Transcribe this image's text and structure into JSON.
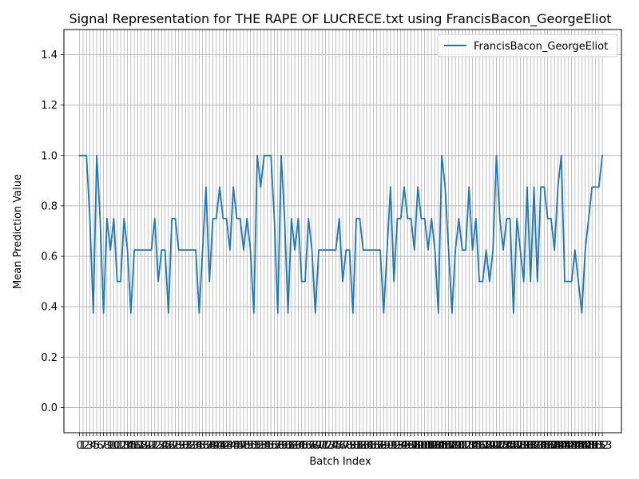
{
  "chart_data": {
    "type": "line",
    "title": "Signal Representation for THE RAPE OF LUCRECE.txt using FrancisBacon_GeorgeEliot",
    "xlabel": "Batch Index",
    "ylabel": "Mean Prediction Value",
    "xlim": [
      -4.6,
      158.6
    ],
    "ylim": [
      -0.1,
      1.5
    ],
    "yticks": [
      0.0,
      0.2,
      0.4,
      0.6,
      0.8,
      1.0,
      1.2,
      1.4
    ],
    "ytick_labels": [
      "0.0",
      "0.2",
      "0.4",
      "0.6",
      "0.8",
      "1.0",
      "1.2",
      "1.4"
    ],
    "grid": true,
    "legend_position": "top-right",
    "series": [
      {
        "name": "FrancisBacon_GeorgeEliot",
        "color": "#1f77b4",
        "x": [
          0,
          1,
          2,
          3,
          4,
          5,
          6,
          7,
          8,
          9,
          10,
          11,
          12,
          13,
          14,
          15,
          16,
          17,
          18,
          19,
          20,
          21,
          22,
          23,
          24,
          25,
          26,
          27,
          28,
          29,
          30,
          31,
          32,
          33,
          34,
          35,
          36,
          37,
          38,
          39,
          40,
          41,
          42,
          43,
          44,
          45,
          46,
          47,
          48,
          49,
          50,
          51,
          52,
          53,
          54,
          55,
          56,
          57,
          58,
          59,
          60,
          61,
          62,
          63,
          64,
          65,
          66,
          67,
          68,
          69,
          70,
          71,
          72,
          73,
          74,
          75,
          76,
          77,
          78,
          79,
          80,
          81,
          82,
          83,
          84,
          85,
          86,
          87,
          88,
          89,
          90,
          91,
          92,
          93,
          94,
          95,
          96,
          97,
          98,
          99,
          100,
          101,
          102,
          103,
          104,
          105,
          106,
          107,
          108,
          109,
          110,
          111,
          112,
          113,
          114,
          115,
          116,
          117,
          118,
          119,
          120,
          121,
          122,
          123,
          124,
          125,
          126,
          127,
          128,
          129,
          130,
          131,
          132,
          133,
          134,
          135,
          136,
          137,
          138,
          139,
          140,
          141,
          142,
          143,
          144,
          145,
          146,
          147,
          148,
          149,
          150,
          151,
          152,
          153
        ],
        "values": [
          1.0,
          1.0,
          1.0,
          0.75,
          0.375,
          1.0,
          0.75,
          0.375,
          0.75,
          0.625,
          0.75,
          0.5,
          0.5,
          0.75,
          0.625,
          0.375,
          0.625,
          0.625,
          0.625,
          0.625,
          0.625,
          0.625,
          0.75,
          0.5,
          0.625,
          0.625,
          0.375,
          0.75,
          0.75,
          0.625,
          0.625,
          0.625,
          0.625,
          0.625,
          0.625,
          0.375,
          0.625,
          0.875,
          0.5,
          0.75,
          0.75,
          0.875,
          0.75,
          0.75,
          0.625,
          0.875,
          0.75,
          0.75,
          0.625,
          0.75,
          0.625,
          0.375,
          1.0,
          0.875,
          1.0,
          1.0,
          1.0,
          0.75,
          0.375,
          1.0,
          0.75,
          0.375,
          0.75,
          0.625,
          0.75,
          0.5,
          0.5,
          0.75,
          0.625,
          0.375,
          0.625,
          0.625,
          0.625,
          0.625,
          0.625,
          0.625,
          0.75,
          0.5,
          0.625,
          0.625,
          0.375,
          0.75,
          0.75,
          0.625,
          0.625,
          0.625,
          0.625,
          0.625,
          0.625,
          0.375,
          0.625,
          0.875,
          0.5,
          0.75,
          0.75,
          0.875,
          0.75,
          0.75,
          0.625,
          0.875,
          0.75,
          0.75,
          0.625,
          0.75,
          0.625,
          0.375,
          1.0,
          0.875,
          0.625,
          0.375,
          0.625,
          0.75,
          0.625,
          0.625,
          0.875,
          0.625,
          0.75,
          0.5,
          0.5,
          0.625,
          0.5,
          0.625,
          1.0,
          0.75,
          0.625,
          0.75,
          0.75,
          0.375,
          0.75,
          0.625,
          0.5,
          0.875,
          0.5,
          0.875,
          0.5,
          0.875,
          0.875,
          0.75,
          0.75,
          0.625,
          0.875,
          1.0,
          0.5,
          0.5,
          0.5,
          0.625,
          0.5,
          0.375,
          0.625,
          0.75,
          0.875,
          0.875,
          0.875,
          1.0
        ]
      }
    ]
  }
}
